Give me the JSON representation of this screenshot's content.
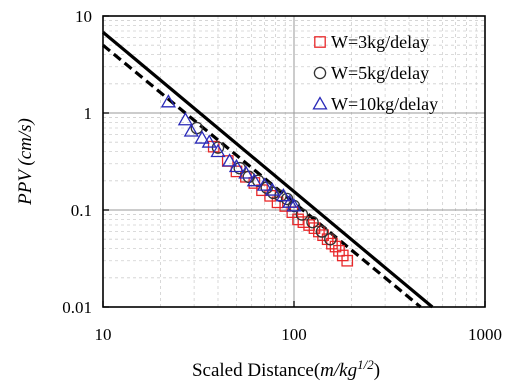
{
  "chart_data": {
    "type": "scatter",
    "xlabel": {
      "main": "Scaled Distance(",
      "units": "m/kg",
      "exp": "1/2",
      "close": ")"
    },
    "ylabel": "PPV (cm/s)",
    "xscale": "log",
    "yscale": "log",
    "xlim": [
      10,
      1000
    ],
    "ylim": [
      0.01,
      10
    ],
    "x_ticks": [
      "10",
      "100",
      "1000"
    ],
    "y_ticks": [
      "0.01",
      "0.1",
      "1",
      "10"
    ],
    "grid": true,
    "legend_position": "top-right",
    "series": [
      {
        "name": "W=3kg/delay",
        "marker": "square",
        "color": "#e8282a",
        "x": [
          38,
          45,
          50,
          56,
          62,
          68,
          75,
          82,
          90,
          98,
          105,
          112,
          120,
          128,
          135,
          142,
          150,
          158,
          165,
          172,
          180,
          190
        ],
        "y": [
          0.45,
          0.32,
          0.25,
          0.22,
          0.19,
          0.16,
          0.14,
          0.12,
          0.11,
          0.095,
          0.08,
          0.075,
          0.07,
          0.065,
          0.06,
          0.055,
          0.05,
          0.045,
          0.042,
          0.038,
          0.034,
          0.03
        ]
      },
      {
        "name": "W=5kg/delay",
        "marker": "circle",
        "color": "#333333",
        "x": [
          31,
          40,
          52,
          58,
          65,
          72,
          78,
          85,
          92,
          100,
          110,
          125,
          140,
          155
        ],
        "y": [
          0.7,
          0.44,
          0.27,
          0.22,
          0.2,
          0.17,
          0.15,
          0.14,
          0.13,
          0.11,
          0.09,
          0.075,
          0.06,
          0.05
        ]
      },
      {
        "name": "W=10kg/delay",
        "marker": "triangle",
        "color": "#2a2ab8",
        "x": [
          22,
          27,
          29,
          33,
          36,
          40,
          46,
          50,
          56,
          62,
          70,
          77,
          88,
          95,
          100
        ],
        "y": [
          1.3,
          0.85,
          0.65,
          0.55,
          0.5,
          0.4,
          0.32,
          0.28,
          0.24,
          0.2,
          0.18,
          0.16,
          0.14,
          0.12,
          0.11
        ]
      }
    ],
    "lines": [
      {
        "style": "solid",
        "color": "#000000",
        "x": [
          10,
          530
        ],
        "y": [
          6.8,
          0.01
        ]
      },
      {
        "style": "dashed",
        "color": "#000000",
        "x": [
          10,
          460
        ],
        "y": [
          5.0,
          0.01
        ]
      }
    ]
  }
}
